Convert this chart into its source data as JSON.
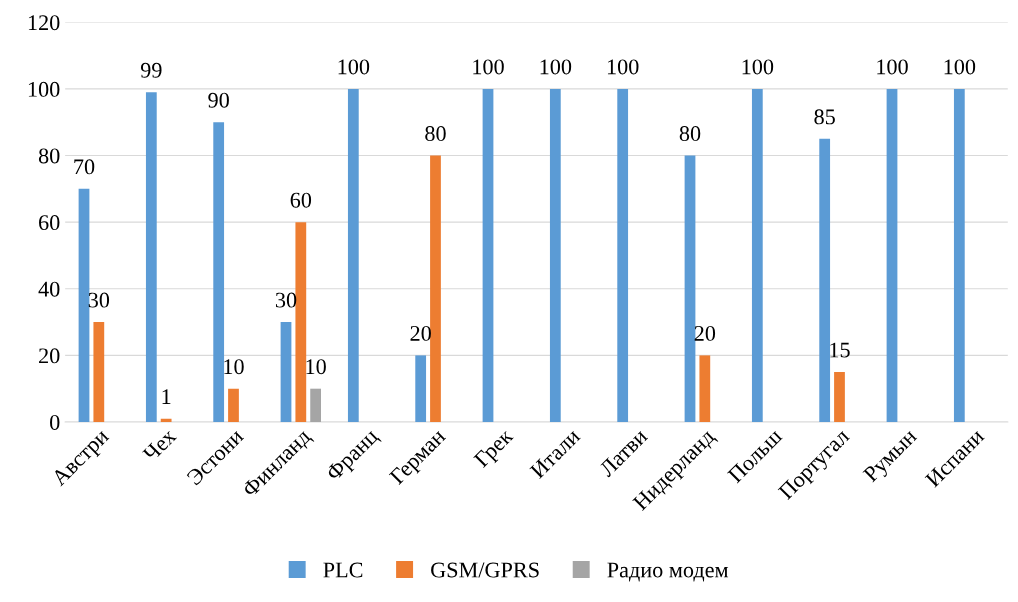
{
  "chart_data": {
    "type": "bar",
    "categories": [
      "Австри",
      "Чех",
      "Эстони",
      "Финланд",
      "Франц",
      "Герман",
      "Грек",
      "Итали",
      "Латви",
      "Нидерланд",
      "Польш",
      "Португал",
      "Румын",
      "Испани"
    ],
    "series": [
      {
        "name": "PLC",
        "color": "#5b9bd5",
        "values": [
          70,
          99,
          90,
          30,
          100,
          20,
          100,
          100,
          100,
          80,
          100,
          85,
          100,
          100
        ],
        "value_labels": [
          "70",
          "99",
          "90",
          "30",
          "100",
          "20",
          "100",
          "100",
          "100",
          "80",
          "100",
          "85",
          "100",
          "100"
        ]
      },
      {
        "name": "GSM/GPRS",
        "color": "#ed7d31",
        "values": [
          30,
          1,
          10,
          60,
          null,
          80,
          null,
          null,
          null,
          20,
          null,
          15,
          null,
          null
        ],
        "value_labels": [
          "30",
          "1",
          "10",
          "60",
          null,
          "80",
          null,
          null,
          null,
          "20",
          null,
          "15",
          null,
          null
        ]
      },
      {
        "name": "Радио модем",
        "color": "#a5a5a5",
        "values": [
          null,
          null,
          null,
          10,
          null,
          null,
          null,
          null,
          null,
          null,
          null,
          null,
          null,
          null
        ],
        "value_labels": [
          null,
          null,
          null,
          "10",
          null,
          null,
          null,
          null,
          null,
          null,
          null,
          null,
          null,
          null
        ]
      }
    ],
    "ylim": [
      0,
      120
    ],
    "yticks": [
      0,
      20,
      40,
      60,
      80,
      100,
      120
    ],
    "grid": "y",
    "legend": "bottom"
  }
}
